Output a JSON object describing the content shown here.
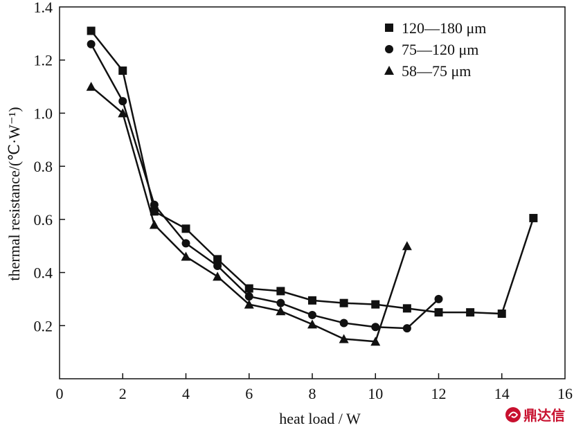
{
  "chart_data": {
    "type": "line",
    "xlabel": "heat load / W",
    "ylabel": "thermal resistance/(℃·W⁻¹)",
    "xlim": [
      0,
      16
    ],
    "ylim": [
      0.0,
      1.4
    ],
    "xticks": [
      0,
      2,
      4,
      6,
      8,
      10,
      12,
      14,
      16
    ],
    "yticks": [
      0.2,
      0.4,
      0.6,
      0.8,
      1.0,
      1.2,
      1.4
    ],
    "ytick_labels": [
      "0.2",
      "0.4",
      "0.6",
      "0.8",
      "1.0",
      "1.2",
      "1.4"
    ],
    "grid": false,
    "legend_position": "top-right",
    "series": [
      {
        "name": "120—180 μm",
        "marker": "square",
        "x": [
          1,
          2,
          3,
          4,
          5,
          6,
          7,
          8,
          9,
          10,
          11,
          12,
          13,
          14,
          15
        ],
        "y": [
          1.31,
          1.16,
          0.63,
          0.565,
          0.45,
          0.34,
          0.33,
          0.295,
          0.285,
          0.28,
          0.265,
          0.25,
          0.25,
          0.245,
          0.605
        ]
      },
      {
        "name": "75—120 μm",
        "marker": "circle",
        "x": [
          1,
          2,
          3,
          4,
          5,
          6,
          7,
          8,
          9,
          10,
          11,
          12
        ],
        "y": [
          1.26,
          1.045,
          0.655,
          0.51,
          0.425,
          0.31,
          0.285,
          0.24,
          0.21,
          0.195,
          0.19,
          0.3
        ]
      },
      {
        "name": "58—75 μm",
        "marker": "triangle",
        "x": [
          1,
          2,
          3,
          4,
          5,
          6,
          7,
          8,
          9,
          10,
          11
        ],
        "y": [
          1.1,
          1.0,
          0.58,
          0.46,
          0.385,
          0.28,
          0.255,
          0.205,
          0.15,
          0.14,
          0.5
        ]
      }
    ]
  },
  "watermark": {
    "text": "鼎达信",
    "logo_icon": "swirl-logo-icon",
    "color": "#c8102e"
  }
}
